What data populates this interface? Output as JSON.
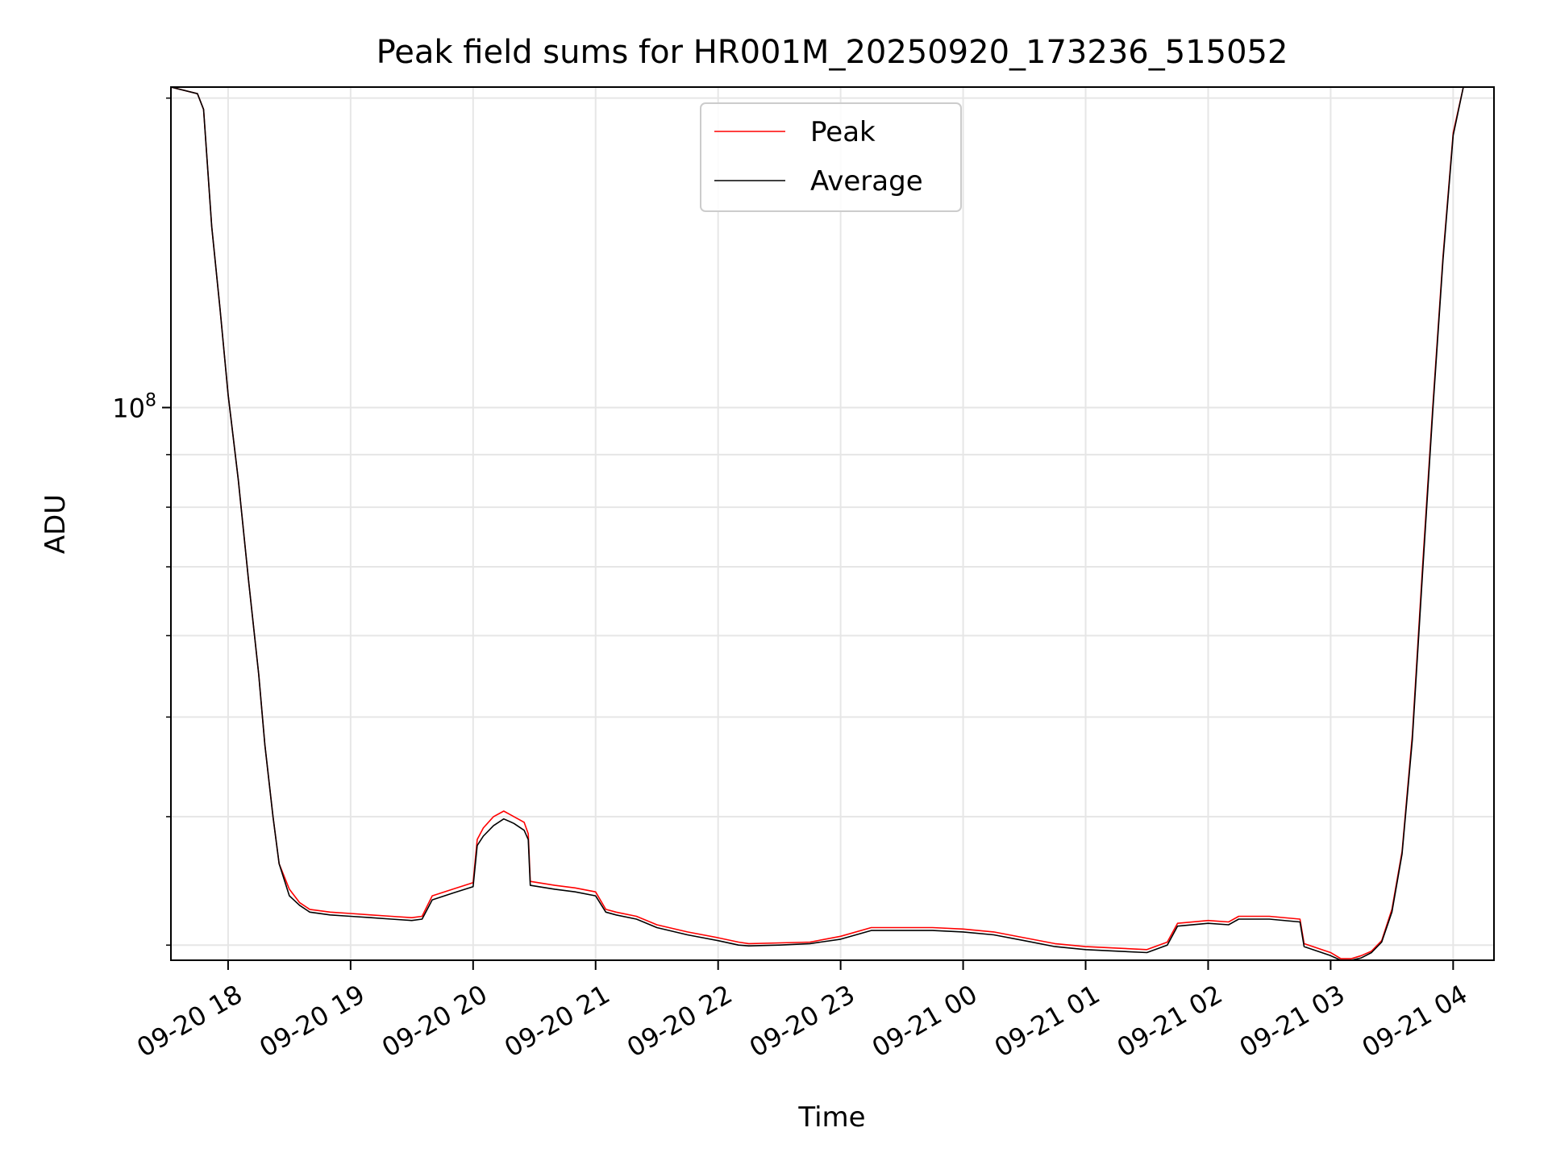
{
  "chart_data": {
    "type": "line",
    "title": "Peak field sums for HR001M_20250920_173236_515052",
    "xlabel": "Time",
    "ylabel": "ADU",
    "y_scale": "log",
    "x_range": [
      "2025-09-20 17:32",
      "2025-09-21 04:20"
    ],
    "ylim": [
      29000000,
      205000000
    ],
    "x_ticks": [
      "09-20 18",
      "09-20 19",
      "09-20 20",
      "09-20 21",
      "09-20 22",
      "09-20 23",
      "09-21 00",
      "09-21 01",
      "09-21 02",
      "09-21 03",
      "09-21 04"
    ],
    "y_tick_major": {
      "value": 100000000,
      "base": "10",
      "exponent": "8"
    },
    "y_tick_minor": [
      30000000,
      40000000,
      50000000,
      60000000,
      70000000,
      80000000,
      90000000,
      200000000
    ],
    "grid": true,
    "legend_placement": "upper-center",
    "colors": {
      "peak": "#ff0000",
      "average": "#000000"
    },
    "series": [
      {
        "name": "Peak",
        "x": [
          "2025-09-20 17:32",
          "2025-09-20 17:45",
          "2025-09-20 17:48",
          "2025-09-20 17:52",
          "2025-09-20 17:56",
          "2025-09-20 18:00",
          "2025-09-20 18:05",
          "2025-09-20 18:10",
          "2025-09-20 18:15",
          "2025-09-20 18:18",
          "2025-09-20 18:22",
          "2025-09-20 18:25",
          "2025-09-20 18:30",
          "2025-09-20 18:35",
          "2025-09-20 18:40",
          "2025-09-20 18:50",
          "2025-09-20 19:00",
          "2025-09-20 19:10",
          "2025-09-20 19:20",
          "2025-09-20 19:30",
          "2025-09-20 19:35",
          "2025-09-20 19:40",
          "2025-09-20 19:50",
          "2025-09-20 20:00",
          "2025-09-20 20:02",
          "2025-09-20 20:05",
          "2025-09-20 20:10",
          "2025-09-20 20:15",
          "2025-09-20 20:20",
          "2025-09-20 20:25",
          "2025-09-20 20:27",
          "2025-09-20 20:28",
          "2025-09-20 20:40",
          "2025-09-20 20:50",
          "2025-09-20 21:00",
          "2025-09-20 21:05",
          "2025-09-20 21:10",
          "2025-09-20 21:20",
          "2025-09-20 21:25",
          "2025-09-20 21:30",
          "2025-09-20 21:45",
          "2025-09-20 22:00",
          "2025-09-20 22:10",
          "2025-09-20 22:15",
          "2025-09-20 22:30",
          "2025-09-20 22:45",
          "2025-09-20 23:00",
          "2025-09-20 23:15",
          "2025-09-20 23:30",
          "2025-09-20 23:45",
          "2025-09-21 00:00",
          "2025-09-21 00:15",
          "2025-09-21 00:30",
          "2025-09-21 00:45",
          "2025-09-21 01:00",
          "2025-09-21 01:15",
          "2025-09-21 01:30",
          "2025-09-21 01:40",
          "2025-09-21 01:45",
          "2025-09-21 02:00",
          "2025-09-21 02:10",
          "2025-09-21 02:15",
          "2025-09-21 02:30",
          "2025-09-21 02:45",
          "2025-09-21 02:47",
          "2025-09-21 03:00",
          "2025-09-21 03:05",
          "2025-09-21 03:10",
          "2025-09-21 03:15",
          "2025-09-21 03:20",
          "2025-09-21 03:25",
          "2025-09-21 03:30",
          "2025-09-21 03:35",
          "2025-09-21 03:40",
          "2025-09-21 03:45",
          "2025-09-21 03:50",
          "2025-09-21 03:55",
          "2025-09-21 04:00",
          "2025-09-21 04:05"
        ],
        "y": [
          205000000,
          202000000,
          195000000,
          150000000,
          125000000,
          103000000,
          85000000,
          68000000,
          55000000,
          47000000,
          40000000,
          36000000,
          34000000,
          33000000,
          32500000,
          32300000,
          32200000,
          32100000,
          32000000,
          31900000,
          32000000,
          33500000,
          34000000,
          34500000,
          38000000,
          39000000,
          40000000,
          40500000,
          40000000,
          39500000,
          38500000,
          34600000,
          34300000,
          34100000,
          33800000,
          32500000,
          32300000,
          32000000,
          31700000,
          31400000,
          30900000,
          30500000,
          30200000,
          30100000,
          30150000,
          30200000,
          30600000,
          31200000,
          31200000,
          31200000,
          31100000,
          30900000,
          30500000,
          30100000,
          29900000,
          29800000,
          29700000,
          30200000,
          31500000,
          31700000,
          31600000,
          32000000,
          32000000,
          31800000,
          30100000,
          29500000,
          29100000,
          29100000,
          29300000,
          29600000,
          30300000,
          32500000,
          37000000,
          48000000,
          70000000,
          100000000,
          140000000,
          185000000,
          205000000
        ]
      },
      {
        "name": "Average",
        "x": [
          "2025-09-20 17:32",
          "2025-09-20 17:45",
          "2025-09-20 17:48",
          "2025-09-20 17:52",
          "2025-09-20 17:56",
          "2025-09-20 18:00",
          "2025-09-20 18:05",
          "2025-09-20 18:10",
          "2025-09-20 18:15",
          "2025-09-20 18:18",
          "2025-09-20 18:22",
          "2025-09-20 18:25",
          "2025-09-20 18:30",
          "2025-09-20 18:35",
          "2025-09-20 18:40",
          "2025-09-20 18:50",
          "2025-09-20 19:00",
          "2025-09-20 19:10",
          "2025-09-20 19:20",
          "2025-09-20 19:30",
          "2025-09-20 19:35",
          "2025-09-20 19:40",
          "2025-09-20 19:50",
          "2025-09-20 20:00",
          "2025-09-20 20:02",
          "2025-09-20 20:05",
          "2025-09-20 20:10",
          "2025-09-20 20:15",
          "2025-09-20 20:20",
          "2025-09-20 20:25",
          "2025-09-20 20:27",
          "2025-09-20 20:28",
          "2025-09-20 20:40",
          "2025-09-20 20:50",
          "2025-09-20 21:00",
          "2025-09-20 21:05",
          "2025-09-20 21:10",
          "2025-09-20 21:20",
          "2025-09-20 21:25",
          "2025-09-20 21:30",
          "2025-09-20 21:45",
          "2025-09-20 22:00",
          "2025-09-20 22:10",
          "2025-09-20 22:15",
          "2025-09-20 22:30",
          "2025-09-20 22:45",
          "2025-09-20 23:00",
          "2025-09-20 23:15",
          "2025-09-20 23:30",
          "2025-09-20 23:45",
          "2025-09-21 00:00",
          "2025-09-21 00:15",
          "2025-09-21 00:30",
          "2025-09-21 00:45",
          "2025-09-21 01:00",
          "2025-09-21 01:15",
          "2025-09-21 01:30",
          "2025-09-21 01:40",
          "2025-09-21 01:45",
          "2025-09-21 02:00",
          "2025-09-21 02:10",
          "2025-09-21 02:15",
          "2025-09-21 02:30",
          "2025-09-21 02:45",
          "2025-09-21 02:47",
          "2025-09-21 03:00",
          "2025-09-21 03:05",
          "2025-09-21 03:10",
          "2025-09-21 03:15",
          "2025-09-21 03:20",
          "2025-09-21 03:25",
          "2025-09-21 03:30",
          "2025-09-21 03:35",
          "2025-09-21 03:40",
          "2025-09-21 03:45",
          "2025-09-21 03:50",
          "2025-09-21 03:55",
          "2025-09-21 04:00",
          "2025-09-21 04:05"
        ],
        "y": [
          205000000,
          202000000,
          195000000,
          150000000,
          125000000,
          103000000,
          85000000,
          68000000,
          55000000,
          47000000,
          40000000,
          36000000,
          33500000,
          32800000,
          32300000,
          32100000,
          32000000,
          31900000,
          31800000,
          31700000,
          31800000,
          33200000,
          33700000,
          34200000,
          37500000,
          38300000,
          39200000,
          39800000,
          39400000,
          38800000,
          38000000,
          34300000,
          34000000,
          33800000,
          33500000,
          32300000,
          32100000,
          31800000,
          31500000,
          31200000,
          30700000,
          30300000,
          30000000,
          29950000,
          30000000,
          30100000,
          30400000,
          31000000,
          31000000,
          31000000,
          30900000,
          30700000,
          30300000,
          29900000,
          29700000,
          29600000,
          29500000,
          30000000,
          31300000,
          31500000,
          31400000,
          31800000,
          31800000,
          31600000,
          29900000,
          29300000,
          28950000,
          28950000,
          29150000,
          29500000,
          30200000,
          32300000,
          36800000,
          47500000,
          69000000,
          99000000,
          139000000,
          184000000,
          205000000
        ]
      }
    ]
  }
}
